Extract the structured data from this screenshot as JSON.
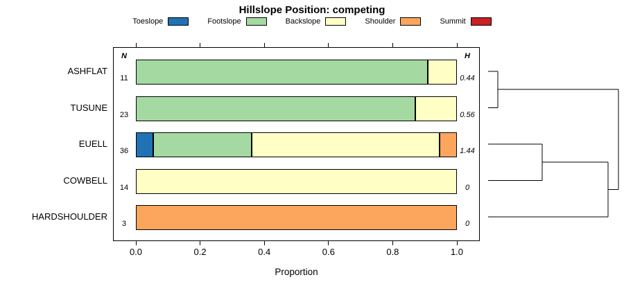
{
  "title": "Hillslope Position: competing",
  "columns": {
    "n_header": "N",
    "h_header": "H"
  },
  "axis": {
    "xlabel": "Proportion",
    "tick_labels": [
      "0.0",
      "0.2",
      "0.4",
      "0.6",
      "0.8",
      "1.0"
    ],
    "tick_values": [
      0,
      0.2,
      0.4,
      0.6,
      0.8,
      1.0
    ],
    "xlim": [
      0,
      1
    ]
  },
  "colors": {
    "Toeslope": "#2171B5",
    "Footslope": "#A5D9A2",
    "Backslope": "#FFFFC5",
    "Shoulder": "#FCA55D",
    "Summit": "#CB2026"
  },
  "legend_items": [
    "Toeslope",
    "Footslope",
    "Backslope",
    "Shoulder",
    "Summit"
  ],
  "chart_data": {
    "type": "bar",
    "orientation": "horizontal",
    "stacked": true,
    "title": "Hillslope Position: competing",
    "xlabel": "Proportion",
    "xlim": [
      0,
      1
    ],
    "legend_position": "top",
    "categories": [
      "Toeslope",
      "Footslope",
      "Backslope",
      "Shoulder",
      "Summit"
    ],
    "rows": [
      {
        "label": "ASHFLAT",
        "n": 11,
        "h": "0.44",
        "segments": [
          [
            "Footslope",
            0.91
          ],
          [
            "Backslope",
            0.09
          ]
        ]
      },
      {
        "label": "TUSUNE",
        "n": 23,
        "h": "0.56",
        "segments": [
          [
            "Footslope",
            0.87
          ],
          [
            "Backslope",
            0.13
          ]
        ]
      },
      {
        "label": "EUELL",
        "n": 36,
        "h": "1.44",
        "segments": [
          [
            "Toeslope",
            0.055
          ],
          [
            "Footslope",
            0.305
          ],
          [
            "Backslope",
            0.585
          ],
          [
            "Shoulder",
            0.055
          ]
        ]
      },
      {
        "label": "COWBELL",
        "n": 14,
        "h": "0",
        "segments": [
          [
            "Backslope",
            1.0
          ]
        ]
      },
      {
        "label": "HARDSHOULDER",
        "n": 3,
        "h": "0",
        "segments": [
          [
            "Shoulder",
            1.0
          ]
        ]
      }
    ],
    "dendrogram": {
      "description": "hierarchical clustering of profiles, drawn right of chart",
      "segments": [
        [
          12,
          35,
          26,
          35
        ],
        [
          12,
          87.5,
          26,
          87.5
        ],
        [
          26,
          35,
          26,
          87.5
        ],
        [
          26,
          61,
          200,
          61
        ],
        [
          12,
          140,
          90,
          140
        ],
        [
          12,
          192.5,
          90,
          192.5
        ],
        [
          90,
          140,
          90,
          192.5
        ],
        [
          90,
          166,
          185,
          166
        ],
        [
          12,
          245,
          185,
          245
        ],
        [
          185,
          166,
          185,
          245
        ],
        [
          185,
          205.5,
          200,
          205.5
        ],
        [
          200,
          61,
          200,
          205.5
        ]
      ]
    }
  }
}
